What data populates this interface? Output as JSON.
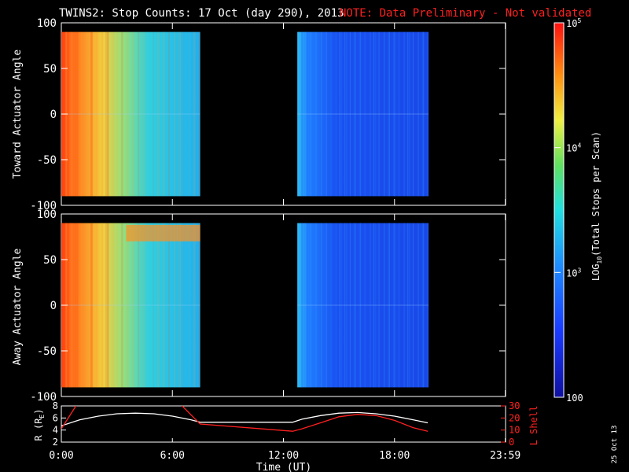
{
  "title": {
    "main": "TWINS2: Stop Counts: 17 Oct (day 290), 2013",
    "note": "NOTE: Data Preliminary - Not validated"
  },
  "stamp": "25 Oct 13",
  "chart_data": [
    {
      "type": "heatmap",
      "panel": "toward",
      "ylabel": "Toward Actuator Angle",
      "ylim": [
        -100,
        100
      ],
      "yticks": [
        "100",
        "50",
        "0",
        "-50",
        "-100"
      ],
      "data_blocks": [
        {
          "t_start": "0:00",
          "t_end": "7:30",
          "level": "high-to-moderate"
        },
        {
          "t_start": "12:45",
          "t_end": "19:50",
          "level": "low"
        }
      ]
    },
    {
      "type": "heatmap",
      "panel": "away",
      "ylabel": "Away Actuator Angle",
      "ylim": [
        -100,
        100
      ],
      "yticks": [
        "100",
        "50",
        "0",
        "-50",
        "-100"
      ],
      "data_blocks": [
        {
          "t_start": "0:00",
          "t_end": "7:30",
          "level": "high-to-moderate"
        },
        {
          "t_start": "12:45",
          "t_end": "19:50",
          "level": "low"
        }
      ]
    },
    {
      "type": "line",
      "panel": "ephemeris",
      "ylabel_left": "R (R",
      "ylabel_left_sub": "E",
      "ylabel_left_close": ")",
      "ylabel_right": "L Shell",
      "yticks_left": [
        "8",
        "6",
        "4",
        "2"
      ],
      "yticks_right": [
        "30",
        "20",
        "10",
        "0"
      ],
      "ylim_left": [
        2,
        8
      ],
      "ylim_right": [
        0,
        30
      ],
      "xlabel": "Time (UT)",
      "xticks": [
        "0:00",
        "6:00",
        "12:00",
        "18:00",
        "23:59"
      ],
      "series": [
        {
          "color": "#ffffff",
          "x": [
            0,
            1,
            2,
            3,
            4,
            5,
            6,
            7,
            7.5,
            12.5,
            13,
            14,
            15,
            16,
            17,
            18,
            19,
            19.8
          ],
          "y": [
            4.7,
            5.7,
            6.3,
            6.7,
            6.8,
            6.7,
            6.3,
            5.7,
            5.3,
            5.3,
            5.8,
            6.4,
            6.8,
            6.9,
            6.7,
            6.3,
            5.7,
            5.2
          ]
        },
        {
          "color": "#ff2020",
          "x": [
            0,
            1.0,
            6.2,
            7.5,
            12.5,
            13,
            14,
            15,
            16,
            17,
            18,
            19,
            19.8
          ],
          "y": [
            11,
            35,
            35,
            15,
            9,
            11,
            16,
            21,
            23,
            22,
            18,
            12,
            9
          ]
        }
      ]
    },
    {
      "type": "heatmap",
      "panel": "colorbar",
      "label": "LOG10(Total Stops per Scan)",
      "label_pre": "LOG",
      "label_sub": "10",
      "label_post": "(Total Stops per Scan)",
      "ticks": [
        {
          "base": "10",
          "exp": "5"
        },
        {
          "base": "10",
          "exp": "4"
        },
        {
          "base": "10",
          "exp": "3"
        },
        {
          "base": "100",
          "exp": ""
        }
      ],
      "range": [
        100,
        100000
      ],
      "log_scale": true
    }
  ]
}
